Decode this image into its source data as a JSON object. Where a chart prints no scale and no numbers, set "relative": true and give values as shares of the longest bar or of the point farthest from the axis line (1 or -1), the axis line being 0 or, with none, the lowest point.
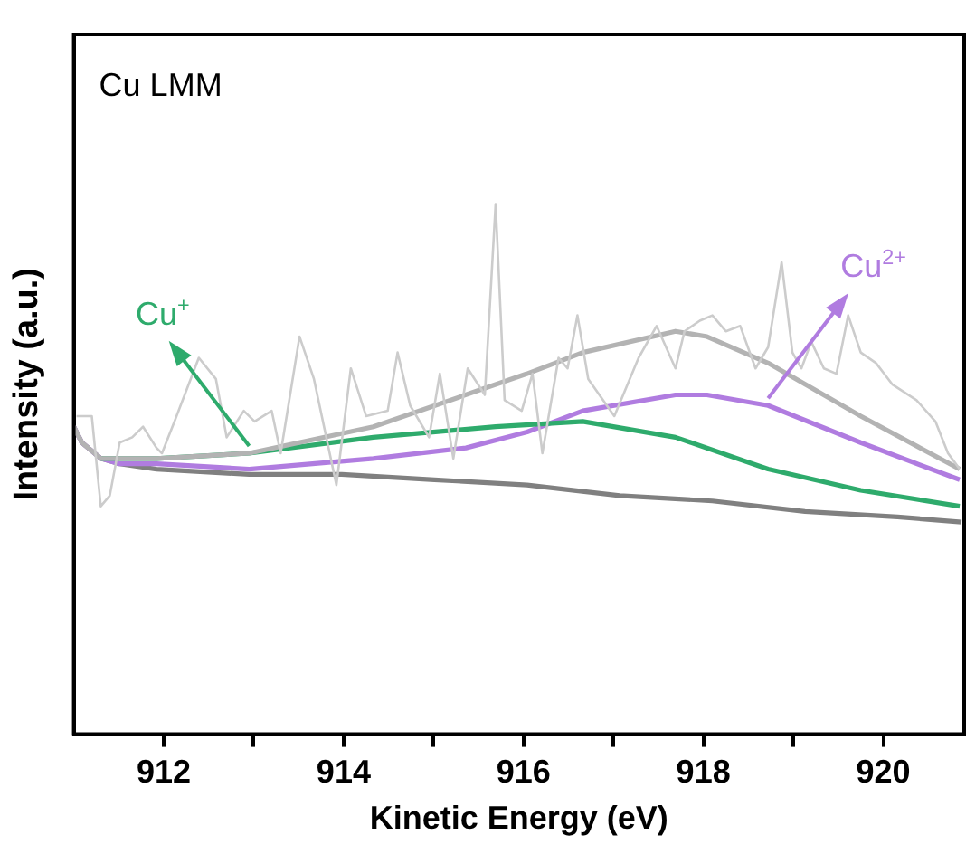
{
  "chart_data": {
    "type": "line",
    "relative": true,
    "xlabel": "Kinetic Energy (eV)",
    "ylabel": "Intensity (a.u.)",
    "annotations": [
      "Cu LMM"
    ],
    "xlim": [
      911,
      920.9
    ],
    "xticks": [
      912,
      {
        "value": 913,
        "label": null
      },
      914,
      {
        "value": 915,
        "label": null
      },
      916,
      {
        "value": 917,
        "label": null
      },
      918,
      {
        "value": 919,
        "label": null
      },
      920
    ],
    "grid": false,
    "legend": false,
    "marker": "none",
    "line_style": "solid",
    "series": [
      {
        "color": "#cccccc",
        "x": [
          911.03,
          911.2,
          911.3,
          911.4,
          911.51,
          911.65,
          911.77,
          911.92,
          911.98,
          912.12,
          912.39,
          912.58,
          912.7,
          912.89,
          913.01,
          913.2,
          913.3,
          913.51,
          913.67,
          913.92,
          914.08,
          914.25,
          914.49,
          914.6,
          914.74,
          914.95,
          915.07,
          915.22,
          915.38,
          915.57,
          915.69,
          915.79,
          915.98,
          916.1,
          916.21,
          916.39,
          916.49,
          916.6,
          916.72,
          917.01,
          917.28,
          917.48,
          917.69,
          917.79,
          917.96,
          918.1,
          918.25,
          918.41,
          918.58,
          918.72,
          918.87,
          918.99,
          919.09,
          919.2,
          919.34,
          919.48,
          919.61,
          919.75,
          919.92,
          920.1,
          920.37,
          920.58,
          920.72,
          920.85
        ],
        "values": [
          0.6,
          0.6,
          0.43,
          0.45,
          0.55,
          0.56,
          0.58,
          0.54,
          0.53,
          0.59,
          0.71,
          0.67,
          0.56,
          0.61,
          0.59,
          0.61,
          0.53,
          0.75,
          0.67,
          0.47,
          0.69,
          0.6,
          0.61,
          0.72,
          0.62,
          0.56,
          0.68,
          0.52,
          0.69,
          0.64,
          1.0,
          0.63,
          0.61,
          0.68,
          0.53,
          0.71,
          0.69,
          0.79,
          0.67,
          0.6,
          0.71,
          0.77,
          0.69,
          0.76,
          0.78,
          0.79,
          0.76,
          0.77,
          0.69,
          0.73,
          0.89,
          0.72,
          0.69,
          0.74,
          0.69,
          0.68,
          0.79,
          0.72,
          0.7,
          0.66,
          0.63,
          0.59,
          0.53,
          0.5
        ]
      },
      {
        "color": "#b3b3b3",
        "x": [
          911,
          911.09,
          911.3,
          911.51,
          911.92,
          912.95,
          914.33,
          916.04,
          916.66,
          917.69,
          918.04,
          918.72,
          919.75,
          920.85
        ],
        "values": [
          0.58,
          0.55,
          0.52,
          0.52,
          0.52,
          0.53,
          0.58,
          0.68,
          0.72,
          0.76,
          0.75,
          0.7,
          0.6,
          0.5
        ]
      },
      {
        "name": "Cu$^{+}$",
        "color": "#2eab6c",
        "x": [
          911.3,
          911.51,
          911.92,
          912.95,
          914.33,
          915.69,
          916.66,
          917.69,
          918.72,
          919.75,
          920.85
        ],
        "values": [
          0.52,
          0.52,
          0.52,
          0.53,
          0.56,
          0.58,
          0.59,
          0.56,
          0.5,
          0.46,
          0.43
        ]
      },
      {
        "name": "Cu$^{2+}$",
        "color": "#b07ce0",
        "x": [
          911,
          911.09,
          911.3,
          911.51,
          911.92,
          912.95,
          914.33,
          915.36,
          916.04,
          916.66,
          917.69,
          918.04,
          918.72,
          919.75,
          920.85
        ],
        "values": [
          0.58,
          0.55,
          0.52,
          0.51,
          0.51,
          0.5,
          0.52,
          0.54,
          0.57,
          0.61,
          0.64,
          0.64,
          0.62,
          0.55,
          0.48
        ]
      },
      {
        "color": "#808080",
        "x": [
          911,
          911.09,
          911.3,
          911.51,
          911.92,
          912.95,
          913.98,
          915.01,
          916.04,
          917.07,
          918.1,
          919.13,
          920.16,
          920.87
        ],
        "values": [
          0.58,
          0.55,
          0.52,
          0.51,
          0.5,
          0.49,
          0.49,
          0.48,
          0.47,
          0.45,
          0.44,
          0.42,
          0.41,
          0.4
        ]
      }
    ]
  }
}
